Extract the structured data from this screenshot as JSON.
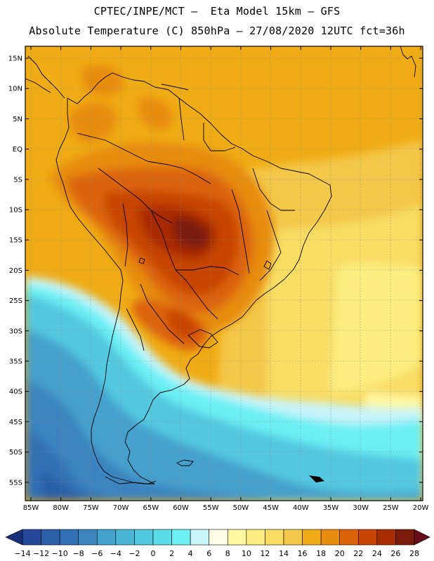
{
  "header": {
    "line1": "CPTEC/INPE/MCT –  Eta Model 15km – GFS",
    "line2": "Absolute Temperature (C) 850hPa – 27/08/2020 12UTC fct=36h"
  },
  "map": {
    "lat_ticks": [
      "15N",
      "10N",
      "5N",
      "EQ",
      "5S",
      "10S",
      "15S",
      "20S",
      "25S",
      "30S",
      "35S",
      "40S",
      "45S",
      "50S",
      "55S"
    ],
    "lon_ticks": [
      "85W",
      "80W",
      "75W",
      "70W",
      "65W",
      "60W",
      "55W",
      "50W",
      "45W",
      "40W",
      "35W",
      "30W",
      "25W",
      "20W"
    ]
  },
  "legend": {
    "labels": [
      "−14",
      "−12",
      "−10",
      "−8",
      "−6",
      "−4",
      "−2",
      "0",
      "2",
      "4",
      "6",
      "8",
      "10",
      "12",
      "14",
      "16",
      "18",
      "20",
      "22",
      "24",
      "26",
      "28"
    ],
    "colors": [
      "#1a2f7a",
      "#24489a",
      "#2c5ea8",
      "#3070b4",
      "#3a84c0",
      "#44a0cc",
      "#4ab6d6",
      "#52c8e0",
      "#5cdcea",
      "#6cf0f4",
      "#c8f4fa",
      "#fffbe4",
      "#fff8a0",
      "#fcee80",
      "#f8dc64",
      "#f4c848",
      "#f0ac14",
      "#e88c10",
      "#dc6408",
      "#c84404",
      "#a82c04",
      "#7a1c0a",
      "#6a0c1a"
    ]
  }
}
